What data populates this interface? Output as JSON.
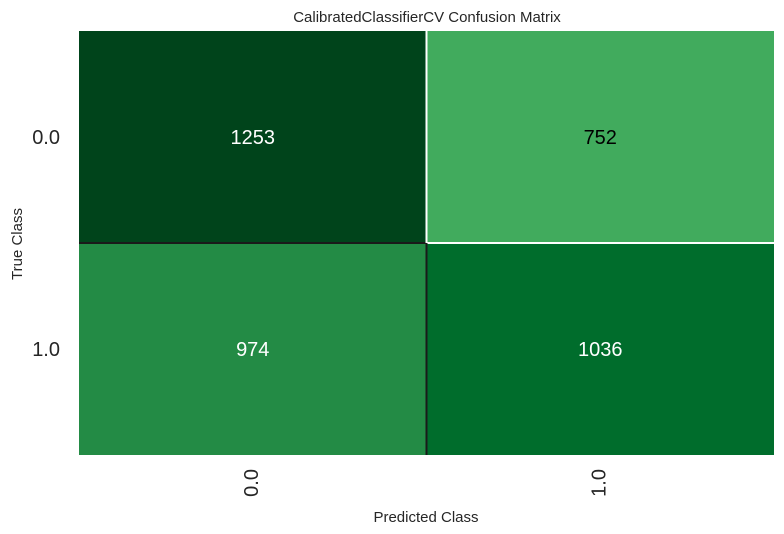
{
  "chart_data": {
    "type": "heatmap",
    "title": "CalibratedClassifierCV Confusion Matrix",
    "xlabel": "Predicted Class",
    "ylabel": "True Class",
    "x_categories": [
      "0.0",
      "1.0"
    ],
    "y_categories": [
      "0.0",
      "1.0"
    ],
    "values": [
      [
        1253,
        752
      ],
      [
        974,
        1036
      ]
    ],
    "colormap": "Greens",
    "cell_colors": [
      [
        "#00441b",
        "#41ab5d"
      ],
      [
        "#238b45",
        "#006d2c"
      ]
    ],
    "text_colors": [
      [
        "#ffffff",
        "#000000"
      ],
      [
        "#ffffff",
        "#ffffff"
      ]
    ],
    "grid": false
  }
}
